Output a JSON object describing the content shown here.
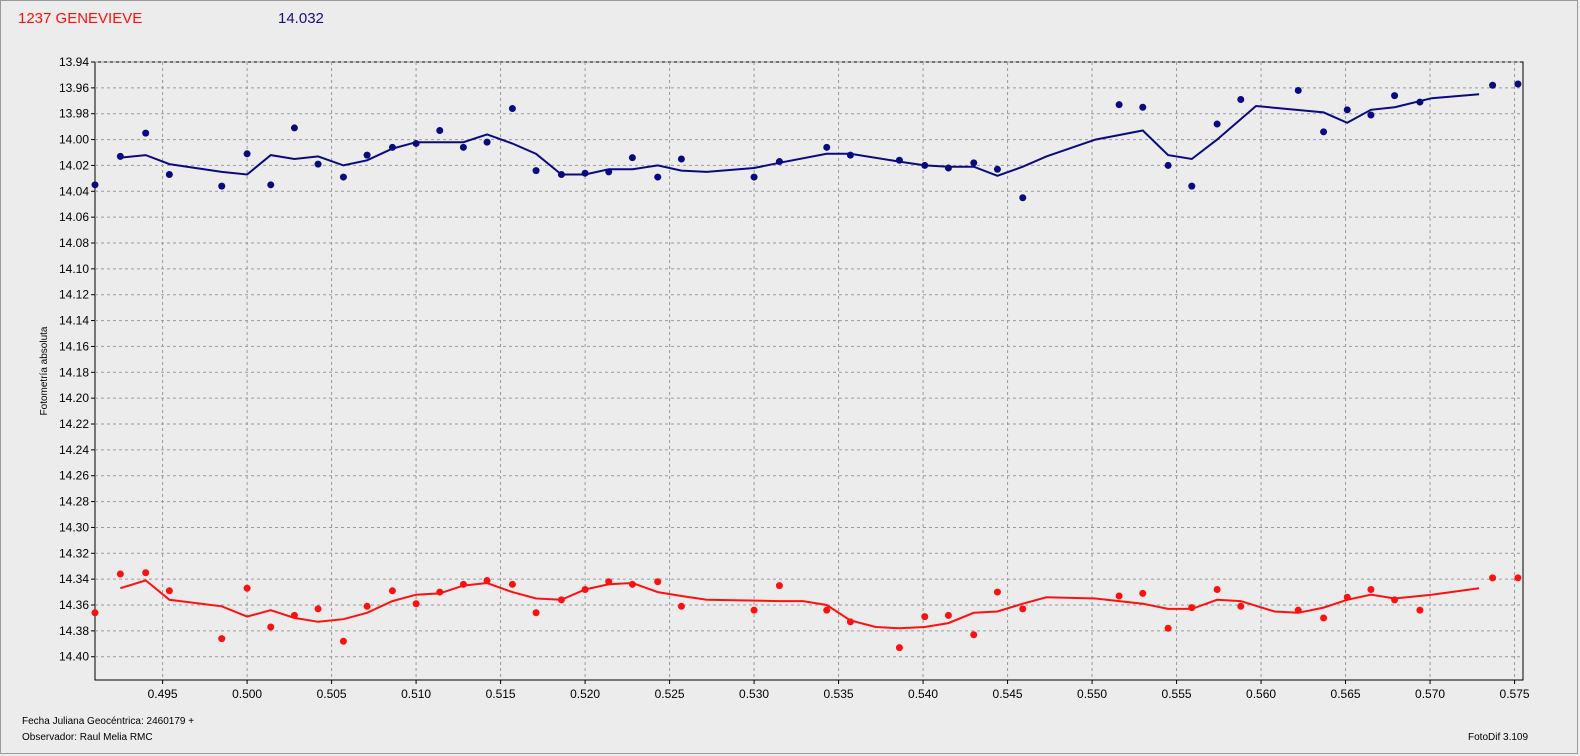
{
  "header": {
    "object_name": "1237 GENEVIEVE",
    "magnitude": "14.032"
  },
  "footer": {
    "date_label": "Fecha Juliana Geocéntrica: 2460179 +",
    "observer": "Observador: Raul Melia RMC",
    "software": "FotoDif 3.109"
  },
  "colors": {
    "background": "#ececec",
    "target": "#0a0a80",
    "comparison": "#ff1010",
    "grid": "#9a9a9a"
  },
  "chart_data": {
    "type": "scatter",
    "ylabel": "Fotometría absoluta",
    "xlabel": "",
    "xlim": [
      0.491,
      0.5755
    ],
    "ylim": [
      13.94,
      14.418
    ],
    "y_inverted": true,
    "grid": true,
    "x_ticks": [
      "0.495",
      "0.500",
      "0.505",
      "0.510",
      "0.515",
      "0.520",
      "0.525",
      "0.530",
      "0.535",
      "0.540",
      "0.545",
      "0.550",
      "0.555",
      "0.560",
      "0.565",
      "0.570",
      "0.575"
    ],
    "y_ticks": [
      "13.94",
      "13.96",
      "13.98",
      "14.00",
      "14.02",
      "14.04",
      "14.06",
      "14.08",
      "14.10",
      "14.12",
      "14.14",
      "14.16",
      "14.18",
      "14.20",
      "14.22",
      "14.24",
      "14.26",
      "14.28",
      "14.30",
      "14.32",
      "14.34",
      "14.36",
      "14.38",
      "14.40"
    ],
    "series": [
      {
        "color": "#0a0a80",
        "x": [
          0.491,
          0.4925,
          0.494,
          0.4954,
          0.4985,
          0.5,
          0.5014,
          0.5028,
          0.5042,
          0.5057,
          0.5071,
          0.5086,
          0.51,
          0.5114,
          0.5128,
          0.5142,
          0.5157,
          0.5171,
          0.5186,
          0.52,
          0.5214,
          0.5228,
          0.5243,
          0.5257,
          0.53,
          0.5315,
          0.5343,
          0.5357,
          0.5386,
          0.5401,
          0.5415,
          0.543,
          0.5444,
          0.5459,
          0.5516,
          0.553,
          0.5545,
          0.5559,
          0.5574,
          0.5588,
          0.5622,
          0.5637,
          0.5651,
          0.5665,
          0.5679,
          0.5694,
          0.5737,
          0.5752
        ],
        "y": [
          14.035,
          14.013,
          13.995,
          14.027,
          14.036,
          14.011,
          14.035,
          13.991,
          14.019,
          14.029,
          14.012,
          14.006,
          14.003,
          13.993,
          14.006,
          14.002,
          13.976,
          14.024,
          14.027,
          14.026,
          14.025,
          14.014,
          14.029,
          14.015,
          14.029,
          14.017,
          14.006,
          14.012,
          14.016,
          14.02,
          14.022,
          14.018,
          14.023,
          14.045,
          13.973,
          13.975,
          14.02,
          14.036,
          13.988,
          13.969,
          13.962,
          13.994,
          13.977,
          13.981,
          13.966,
          13.971,
          13.958,
          13.957
        ],
        "trend_x": [
          0.4925,
          0.494,
          0.4954,
          0.4985,
          0.5,
          0.5014,
          0.5028,
          0.5042,
          0.5057,
          0.5071,
          0.5086,
          0.51,
          0.5114,
          0.5128,
          0.5142,
          0.5157,
          0.5171,
          0.5186,
          0.52,
          0.5214,
          0.5228,
          0.5243,
          0.5257,
          0.5272,
          0.53,
          0.5315,
          0.5343,
          0.5357,
          0.5386,
          0.5401,
          0.5415,
          0.543,
          0.5444,
          0.5459,
          0.5473,
          0.5502,
          0.553,
          0.5545,
          0.5559,
          0.5574,
          0.5597,
          0.5637,
          0.5651,
          0.5665,
          0.5679,
          0.5701,
          0.5729
        ],
        "trend_y": [
          14.014,
          14.012,
          14.019,
          14.025,
          14.027,
          14.012,
          14.015,
          14.013,
          14.02,
          14.016,
          14.007,
          14.002,
          14.002,
          14.002,
          13.996,
          14.003,
          14.011,
          14.027,
          14.027,
          14.023,
          14.023,
          14.02,
          14.024,
          14.025,
          14.022,
          14.018,
          14.011,
          14.011,
          14.017,
          14.02,
          14.021,
          14.021,
          14.028,
          14.021,
          14.013,
          14.0,
          13.993,
          14.012,
          14.015,
          14.0,
          13.974,
          13.979,
          13.987,
          13.977,
          13.975,
          13.968,
          13.965
        ]
      },
      {
        "color": "#ff1010",
        "x": [
          0.491,
          0.4925,
          0.494,
          0.4954,
          0.4985,
          0.5,
          0.5014,
          0.5028,
          0.5042,
          0.5057,
          0.5071,
          0.5086,
          0.51,
          0.5114,
          0.5128,
          0.5142,
          0.5157,
          0.5171,
          0.5186,
          0.52,
          0.5214,
          0.5228,
          0.5243,
          0.5257,
          0.53,
          0.5315,
          0.5343,
          0.5357,
          0.5386,
          0.5401,
          0.5415,
          0.543,
          0.5444,
          0.5459,
          0.5516,
          0.553,
          0.5545,
          0.5559,
          0.5574,
          0.5588,
          0.5622,
          0.5637,
          0.5651,
          0.5665,
          0.5679,
          0.5694,
          0.5737,
          0.5752
        ],
        "y": [
          14.366,
          14.336,
          14.335,
          14.349,
          14.386,
          14.347,
          14.377,
          14.368,
          14.363,
          14.388,
          14.361,
          14.349,
          14.359,
          14.35,
          14.344,
          14.341,
          14.344,
          14.366,
          14.356,
          14.348,
          14.342,
          14.344,
          14.342,
          14.361,
          14.364,
          14.345,
          14.364,
          14.373,
          14.393,
          14.369,
          14.368,
          14.383,
          14.35,
          14.363,
          14.353,
          14.351,
          14.378,
          14.362,
          14.348,
          14.361,
          14.364,
          14.37,
          14.354,
          14.348,
          14.356,
          14.364,
          14.339,
          14.339
        ],
        "trend_x": [
          0.4925,
          0.494,
          0.4954,
          0.4985,
          0.5,
          0.5014,
          0.5028,
          0.5042,
          0.5057,
          0.5071,
          0.5086,
          0.51,
          0.5114,
          0.5128,
          0.5142,
          0.5157,
          0.5171,
          0.5186,
          0.52,
          0.5214,
          0.5228,
          0.5243,
          0.5257,
          0.5272,
          0.5315,
          0.5329,
          0.5343,
          0.5357,
          0.5372,
          0.5386,
          0.5401,
          0.5415,
          0.543,
          0.5444,
          0.5459,
          0.5473,
          0.5502,
          0.553,
          0.5545,
          0.5559,
          0.5574,
          0.5588,
          0.5608,
          0.5622,
          0.5637,
          0.5651,
          0.5665,
          0.5679,
          0.5701,
          0.5729
        ],
        "trend_y": [
          14.347,
          14.341,
          14.356,
          14.361,
          14.369,
          14.364,
          14.37,
          14.373,
          14.371,
          14.366,
          14.357,
          14.352,
          14.351,
          14.345,
          14.343,
          14.35,
          14.355,
          14.356,
          14.348,
          14.344,
          14.343,
          14.35,
          14.353,
          14.356,
          14.357,
          14.357,
          14.36,
          14.372,
          14.377,
          14.378,
          14.377,
          14.374,
          14.366,
          14.365,
          14.359,
          14.354,
          14.355,
          14.359,
          14.363,
          14.363,
          14.356,
          14.357,
          14.365,
          14.366,
          14.362,
          14.356,
          14.352,
          14.355,
          14.352,
          14.347
        ]
      }
    ]
  }
}
